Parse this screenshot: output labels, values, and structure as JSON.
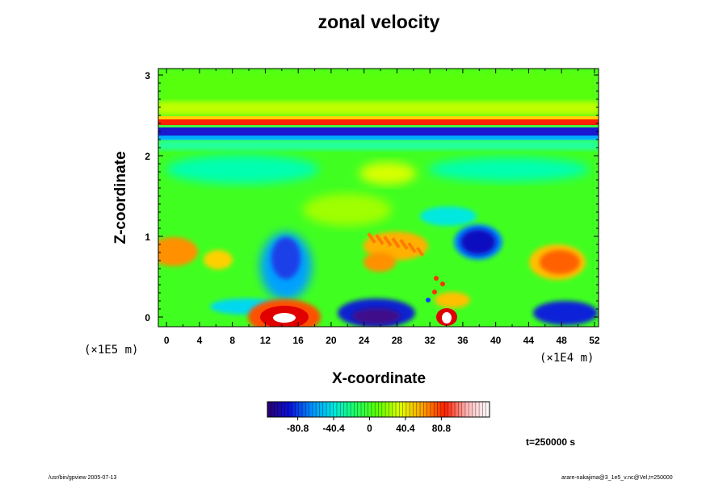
{
  "chart_data": {
    "type": "heatmap",
    "title": "zonal velocity",
    "xlabel": "X-coordinate",
    "ylabel": "Z-coordinate",
    "x_unit_label": "(×1E4 m)",
    "y_unit_label": "(×1E5 m)",
    "xlim": [
      -1,
      52.5
    ],
    "ylim": [
      -0.12,
      3.08
    ],
    "x_ticks": [
      0,
      4,
      8,
      12,
      16,
      20,
      24,
      28,
      32,
      36,
      40,
      44,
      48,
      52
    ],
    "y_ticks": [
      0,
      1,
      2,
      3
    ],
    "colorbar": {
      "ticks": [
        "-80.8",
        "-40.4",
        "0",
        "40.4",
        "80.8"
      ],
      "tick_values": [
        -80.8,
        -40.4,
        0,
        40.4,
        80.8
      ],
      "range": [
        -115,
        135
      ]
    },
    "bands": [
      {
        "z": 2.42,
        "value": 110,
        "label": "strong positive jet"
      },
      {
        "z": 2.31,
        "value": -95,
        "label": "strong negative jet"
      }
    ],
    "features": [
      {
        "x": 14,
        "z": 0.0,
        "value": 125
      },
      {
        "x": 33.6,
        "z": 0.02,
        "value": 125
      },
      {
        "x": 37.5,
        "z": 0.9,
        "value": -90
      },
      {
        "x": 26,
        "z": 0.0,
        "value": -75
      },
      {
        "x": 47.5,
        "z": 0.68,
        "value": 75
      },
      {
        "x": 0.5,
        "z": 0.85,
        "value": 70
      },
      {
        "x": 14.5,
        "z": 0.7,
        "value": -55
      },
      {
        "x": 25.5,
        "z": 0.85,
        "value": 60
      },
      {
        "x": 47,
        "z": 0.05,
        "value": -70
      }
    ]
  },
  "colors": {
    "palette": [
      "#2a0070",
      "#0a10d8",
      "#0090ff",
      "#00e8e0",
      "#20ff60",
      "#60ff00",
      "#e0ff00",
      "#ffa000",
      "#ff2000",
      "#ffb8b8",
      "#ffffff"
    ]
  },
  "time_label": "t=250000 s",
  "footer": {
    "left": "/usr/bin/gpview 2005-07-13",
    "right": "arare-nakajima@3_1e5_v.nc@Vel,t=250000"
  }
}
